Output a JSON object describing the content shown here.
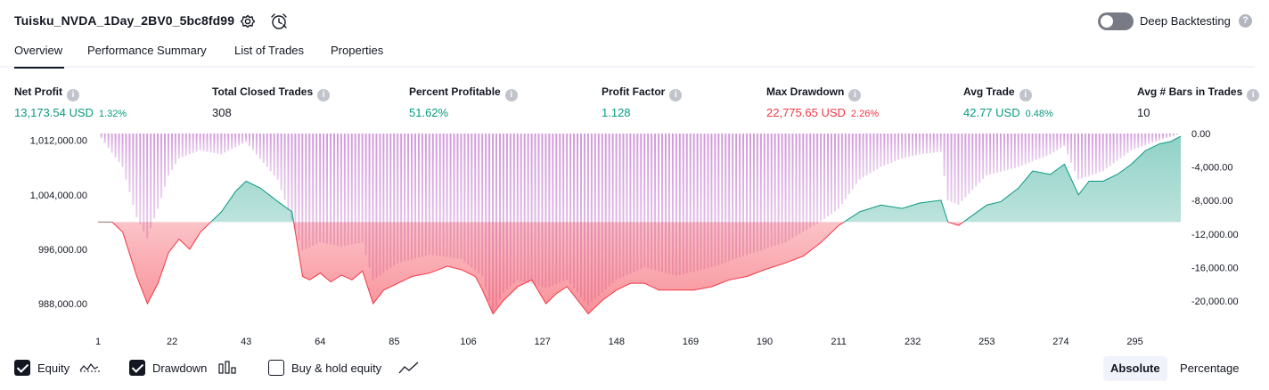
{
  "header": {
    "strategy_title": "Tuisku_NVDA_1Day_2BV0_5bc8fd99",
    "deep_backtesting_label": "Deep Backtesting",
    "help_glyph": "?"
  },
  "tabs": [
    {
      "label": "Overview",
      "active": true
    },
    {
      "label": "Performance Summary",
      "active": false
    },
    {
      "label": "List of Trades",
      "active": false
    },
    {
      "label": "Properties",
      "active": false
    }
  ],
  "metrics": [
    {
      "label": "Net Profit",
      "value": "13,173.54 USD",
      "pct": "1.32%",
      "color": "#089981"
    },
    {
      "label": "Total Closed Trades",
      "value": "308",
      "pct": "",
      "color": "#131722"
    },
    {
      "label": "Percent Profitable",
      "value": "51.62%",
      "pct": "",
      "color": "#089981"
    },
    {
      "label": "Profit Factor",
      "value": "1.128",
      "pct": "",
      "color": "#089981"
    },
    {
      "label": "Max Drawdown",
      "value": "22,775.65 USD",
      "pct": "2.26%",
      "color": "#f23645"
    },
    {
      "label": "Avg Trade",
      "value": "42.77 USD",
      "pct": "0.48%",
      "color": "#089981"
    },
    {
      "label": "Avg # Bars in Trades",
      "value": "10",
      "pct": "",
      "color": "#131722"
    }
  ],
  "chart_data": {
    "type": "area",
    "x_ticks": [
      "1",
      "22",
      "43",
      "64",
      "85",
      "106",
      "127",
      "148",
      "169",
      "190",
      "211",
      "232",
      "253",
      "274",
      "295"
    ],
    "left_axis_ticks": [
      "1,012,000.00",
      "1,004,000.00",
      "996,000.00",
      "988,000.00"
    ],
    "right_axis_ticks": [
      "0.00",
      "-4,000.00",
      "-8,000.00",
      "-12,000.00",
      "-16,000.00",
      "-20,000.00"
    ],
    "equity_baseline": 1000000,
    "equity_ylim": [
      985000,
      1013000
    ],
    "drawdown_ylim": [
      -22775.65,
      0
    ],
    "equity_points": [
      [
        1,
        1000000
      ],
      [
        5,
        1000000
      ],
      [
        8,
        998500
      ],
      [
        12,
        992000
      ],
      [
        15,
        988000
      ],
      [
        18,
        991000
      ],
      [
        21,
        995500
      ],
      [
        24,
        997500
      ],
      [
        27,
        996000
      ],
      [
        30,
        998500
      ],
      [
        33,
        1000000
      ],
      [
        36,
        1001500
      ],
      [
        40,
        1004500
      ],
      [
        43,
        1006000
      ],
      [
        47,
        1005000
      ],
      [
        52,
        1003000
      ],
      [
        56,
        1001500
      ],
      [
        59,
        992000
      ],
      [
        61,
        991500
      ],
      [
        64,
        992500
      ],
      [
        67,
        991200
      ],
      [
        70,
        992200
      ],
      [
        73,
        991500
      ],
      [
        76,
        992800
      ],
      [
        79,
        988000
      ],
      [
        82,
        990000
      ],
      [
        86,
        991000
      ],
      [
        90,
        992000
      ],
      [
        95,
        992500
      ],
      [
        100,
        993500
      ],
      [
        104,
        993000
      ],
      [
        108,
        992000
      ],
      [
        110,
        990000
      ],
      [
        113,
        986500
      ],
      [
        116,
        988500
      ],
      [
        120,
        990500
      ],
      [
        124,
        991500
      ],
      [
        128,
        988000
      ],
      [
        131,
        989500
      ],
      [
        134,
        990500
      ],
      [
        137,
        988500
      ],
      [
        140,
        986500
      ],
      [
        144,
        988500
      ],
      [
        148,
        990000
      ],
      [
        152,
        991000
      ],
      [
        156,
        991000
      ],
      [
        160,
        990000
      ],
      [
        165,
        990000
      ],
      [
        170,
        990000
      ],
      [
        175,
        990500
      ],
      [
        180,
        991500
      ],
      [
        185,
        992000
      ],
      [
        190,
        993000
      ],
      [
        196,
        994000
      ],
      [
        201,
        995000
      ],
      [
        206,
        997000
      ],
      [
        211,
        999500
      ],
      [
        217,
        1001500
      ],
      [
        223,
        1002500
      ],
      [
        229,
        1002000
      ],
      [
        234,
        1002800
      ],
      [
        240,
        1003200
      ],
      [
        242,
        1000000
      ],
      [
        245,
        999500
      ],
      [
        249,
        1001000
      ],
      [
        253,
        1002500
      ],
      [
        257,
        1003000
      ],
      [
        262,
        1005000
      ],
      [
        266,
        1007500
      ],
      [
        271,
        1007000
      ],
      [
        275,
        1008500
      ],
      [
        279,
        1004000
      ],
      [
        282,
        1006000
      ],
      [
        286,
        1006000
      ],
      [
        290,
        1007000
      ],
      [
        294,
        1008500
      ],
      [
        298,
        1010500
      ],
      [
        302,
        1011500
      ],
      [
        305,
        1011800
      ],
      [
        308,
        1012600
      ]
    ],
    "drawdown_points": [
      [
        1,
        0
      ],
      [
        8,
        -4000
      ],
      [
        12,
        -10000
      ],
      [
        15,
        -12500
      ],
      [
        18,
        -9000
      ],
      [
        21,
        -5000
      ],
      [
        24,
        -3000
      ],
      [
        30,
        -2000
      ],
      [
        36,
        -2500
      ],
      [
        43,
        -1000
      ],
      [
        52,
        -5500
      ],
      [
        59,
        -14000
      ],
      [
        64,
        -13000
      ],
      [
        70,
        -13500
      ],
      [
        76,
        -13000
      ],
      [
        79,
        -17500
      ],
      [
        86,
        -15500
      ],
      [
        95,
        -14500
      ],
      [
        104,
        -15000
      ],
      [
        110,
        -17000
      ],
      [
        113,
        -21500
      ],
      [
        116,
        -19000
      ],
      [
        120,
        -17500
      ],
      [
        128,
        -18500
      ],
      [
        134,
        -17500
      ],
      [
        140,
        -20500
      ],
      [
        148,
        -17500
      ],
      [
        156,
        -16000
      ],
      [
        165,
        -17000
      ],
      [
        175,
        -16000
      ],
      [
        185,
        -14500
      ],
      [
        196,
        -13000
      ],
      [
        206,
        -10500
      ],
      [
        211,
        -9000
      ],
      [
        217,
        -5500
      ],
      [
        223,
        -4000
      ],
      [
        229,
        -3000
      ],
      [
        234,
        -2500
      ],
      [
        240,
        -2200
      ],
      [
        242,
        -8000
      ],
      [
        245,
        -8500
      ],
      [
        253,
        -5000
      ],
      [
        262,
        -4000
      ],
      [
        271,
        -2500
      ],
      [
        275,
        -1500
      ],
      [
        279,
        -5500
      ],
      [
        286,
        -4500
      ],
      [
        294,
        -2000
      ],
      [
        302,
        -800
      ],
      [
        308,
        0
      ]
    ],
    "colors": {
      "equity": "#089981",
      "drawdown": "#ce93d8",
      "loss_fill": "#f23645"
    }
  },
  "legend": [
    {
      "label": "Equity",
      "checked": true,
      "icon": "equity-line-icon"
    },
    {
      "label": "Drawdown",
      "checked": true,
      "icon": "drawdown-bars-icon"
    },
    {
      "label": "Buy & hold equity",
      "checked": false,
      "icon": "buy-hold-line-icon"
    }
  ],
  "mode": {
    "absolute_label": "Absolute",
    "percentage_label": "Percentage",
    "active": "Absolute"
  }
}
